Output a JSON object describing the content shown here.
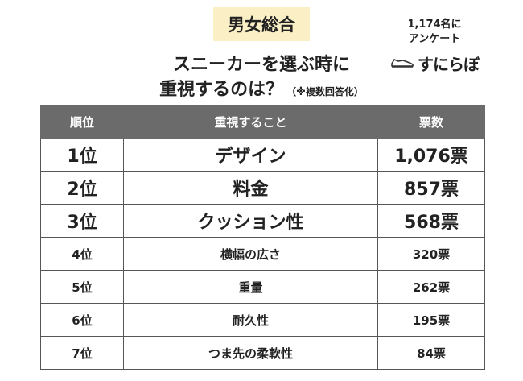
{
  "header": {
    "badge": "男女総合",
    "title_line1": "スニーカーを選ぶ時に",
    "title_line2": "重視するのは？",
    "title_note": "（※複数回答化）",
    "survey_line1": "1,174名に",
    "survey_line2": "アンケート",
    "brand": "すにらぼ",
    "brand_icon": "sneaker-icon"
  },
  "table": {
    "headers": [
      "順位",
      "重視すること",
      "票数"
    ],
    "rows": [
      {
        "rank": "1位",
        "item": "デザイン",
        "votes": "1,076票"
      },
      {
        "rank": "2位",
        "item": "料金",
        "votes": "857票"
      },
      {
        "rank": "3位",
        "item": "クッション性",
        "votes": "568票"
      },
      {
        "rank": "4位",
        "item": "横幅の広さ",
        "votes": "320票"
      },
      {
        "rank": "5位",
        "item": "重量",
        "votes": "262票"
      },
      {
        "rank": "6位",
        "item": "耐久性",
        "votes": "195票"
      },
      {
        "rank": "7位",
        "item": "つま先の柔軟性",
        "votes": "84票"
      }
    ]
  },
  "colors": {
    "badge_bg": "#fbefc6",
    "header_bg": "#6b6b6b"
  }
}
